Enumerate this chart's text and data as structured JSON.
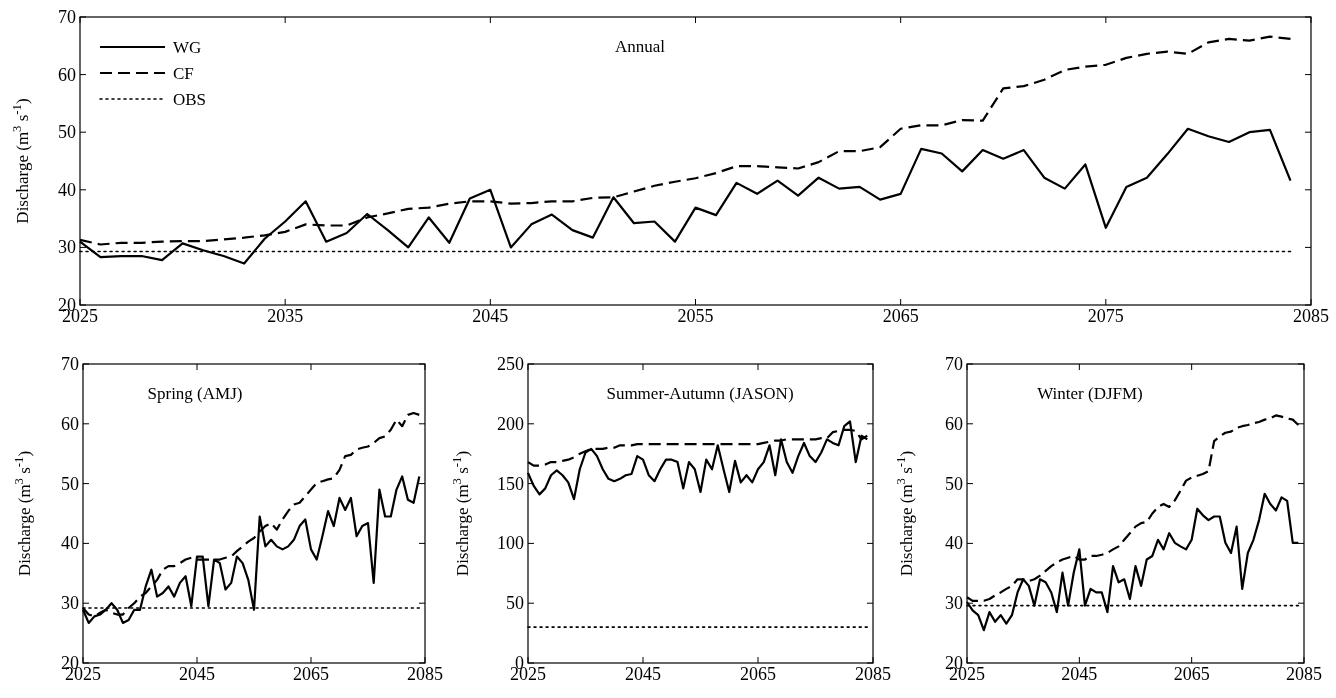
{
  "chart_data": [
    {
      "type": "line",
      "title": "Annual",
      "ylabel": "Discharge (m$^{3}$ s$^{-1}$)",
      "xlim": [
        2025,
        2085
      ],
      "xticks": [
        2025,
        2035,
        2045,
        2055,
        2065,
        2075,
        2085
      ],
      "ylim": [
        20,
        70
      ],
      "yticks": [
        20,
        30,
        40,
        50,
        60,
        70
      ],
      "legend": "top left",
      "grid": false,
      "x": [
        2025,
        2026,
        2027,
        2028,
        2029,
        2030,
        2031,
        2032,
        2033,
        2034,
        2035,
        2036,
        2037,
        2038,
        2039,
        2040,
        2041,
        2042,
        2043,
        2044,
        2045,
        2046,
        2047,
        2048,
        2049,
        2050,
        2051,
        2052,
        2053,
        2054,
        2055,
        2056,
        2057,
        2058,
        2059,
        2060,
        2061,
        2062,
        2063,
        2064,
        2065,
        2066,
        2067,
        2068,
        2069,
        2070,
        2071,
        2072,
        2073,
        2074,
        2075,
        2076,
        2077,
        2078,
        2079,
        2080,
        2081,
        2082,
        2083,
        2084
      ],
      "series": [
        {
          "name": "WG",
          "color": "#000000",
          "line_style": "solid",
          "values": [
            31,
            28.3,
            28.5,
            28.5,
            27.8,
            30.7,
            29.5,
            28.5,
            27.2,
            31.5,
            34.5,
            38,
            31,
            32.5,
            35.8,
            33,
            30,
            35.2,
            30.8,
            38.5,
            40,
            30,
            34,
            35.7,
            33,
            31.7,
            38.7,
            34.2,
            34.5,
            31,
            36.9,
            35.6,
            41.2,
            39.3,
            41.6,
            39,
            42.1,
            40.2,
            40.5,
            38.3,
            39.3,
            47.1,
            46.3,
            43.2,
            46.9,
            45.4,
            46.9,
            42.1,
            40.2,
            44.4,
            33.4,
            40.5,
            42.1,
            46.2,
            50.6,
            49.3,
            48.3,
            50,
            50.4,
            41.6
          ]
        },
        {
          "name": "CF",
          "color": "#000000",
          "line_style": "dashed",
          "values": [
            31.3,
            30.5,
            30.8,
            30.8,
            31,
            31.1,
            31.1,
            31.4,
            31.7,
            32.1,
            32.7,
            34,
            33.8,
            33.8,
            35.2,
            35.9,
            36.7,
            36.9,
            37.6,
            38,
            38,
            37.6,
            37.7,
            38,
            38,
            38.6,
            38.7,
            39.7,
            40.7,
            41.4,
            42,
            42.9,
            44.1,
            44.1,
            43.9,
            43.7,
            44.8,
            46.7,
            46.7,
            47.4,
            50.6,
            51.2,
            51.2,
            52.1,
            52,
            57.6,
            58,
            59.1,
            60.8,
            61.4,
            61.7,
            62.9,
            63.6,
            64,
            63.6,
            65.6,
            66.2,
            65.9,
            66.6,
            66.2
          ]
        },
        {
          "name": "OBS",
          "color": "#000000",
          "line_style": "dotted",
          "values": [
            29.3,
            29.3,
            29.3,
            29.3,
            29.3,
            29.3,
            29.3,
            29.3,
            29.3,
            29.3,
            29.3,
            29.3,
            29.3,
            29.3,
            29.3,
            29.3,
            29.3,
            29.3,
            29.3,
            29.3,
            29.3,
            29.3,
            29.3,
            29.3,
            29.3,
            29.3,
            29.3,
            29.3,
            29.3,
            29.3,
            29.3,
            29.3,
            29.3,
            29.3,
            29.3,
            29.3,
            29.3,
            29.3,
            29.3,
            29.3,
            29.3,
            29.3,
            29.3,
            29.3,
            29.3,
            29.3,
            29.3,
            29.3,
            29.3,
            29.3,
            29.3,
            29.3,
            29.3,
            29.3,
            29.3,
            29.3,
            29.3,
            29.3,
            29.3,
            29.3
          ]
        }
      ]
    },
    {
      "type": "line",
      "title": "Spring (AMJ)",
      "ylabel": "Discharge (m$^{3}$ s$^{-1}$)",
      "xlim": [
        2025,
        2085
      ],
      "xticks": [
        2025,
        2045,
        2065,
        2085
      ],
      "ylim": [
        20,
        70
      ],
      "yticks": [
        20,
        30,
        40,
        50,
        60,
        70
      ],
      "legend": false,
      "grid": false,
      "x": [
        2025,
        2026,
        2027,
        2028,
        2029,
        2030,
        2031,
        2032,
        2033,
        2034,
        2035,
        2036,
        2037,
        2038,
        2039,
        2040,
        2041,
        2042,
        2043,
        2044,
        2045,
        2046,
        2047,
        2048,
        2049,
        2050,
        2051,
        2052,
        2053,
        2054,
        2055,
        2056,
        2057,
        2058,
        2059,
        2060,
        2061,
        2062,
        2063,
        2064,
        2065,
        2066,
        2067,
        2068,
        2069,
        2070,
        2071,
        2072,
        2073,
        2074,
        2075,
        2076,
        2077,
        2078,
        2079,
        2080,
        2081,
        2082,
        2083,
        2084
      ],
      "series": [
        {
          "color": "#000000",
          "line_style": "solid",
          "values": [
            28.9,
            26.7,
            27.8,
            28.1,
            28.9,
            30,
            28.9,
            26.7,
            27.2,
            28.9,
            28.9,
            32.8,
            35.6,
            31.1,
            31.7,
            32.8,
            31.1,
            33.4,
            34.5,
            29.5,
            37.8,
            37.8,
            29.5,
            37.3,
            36.7,
            32.3,
            33.4,
            37.8,
            36.7,
            33.9,
            28.9,
            44.5,
            39.5,
            40.6,
            39.5,
            39,
            39.5,
            40.6,
            42.9,
            44,
            39,
            37.3,
            41.2,
            45.4,
            42.9,
            47.6,
            45.6,
            47.6,
            41.2,
            42.9,
            43.4,
            33.4,
            49,
            44.5,
            44.5,
            49,
            51.2,
            47.3,
            46.8,
            51.2
          ]
        },
        {
          "color": "#000000",
          "line_style": "dashed",
          "values": [
            29.2,
            28.1,
            27.8,
            28.4,
            28.9,
            28.4,
            28.1,
            28.1,
            29.2,
            30,
            31.1,
            31.7,
            32.8,
            33.9,
            35.6,
            36.2,
            36.2,
            36.7,
            37.3,
            37.6,
            37.3,
            37.3,
            37.3,
            37.3,
            37.3,
            37.6,
            37.8,
            38.7,
            39.5,
            40.3,
            40.9,
            42,
            42.9,
            43.4,
            42.3,
            44,
            45.4,
            46.5,
            46.8,
            47.9,
            49,
            50.1,
            50.4,
            50.7,
            50.9,
            52.3,
            54.6,
            54.8,
            55.7,
            56,
            56.2,
            56.8,
            57.6,
            57.9,
            59,
            60.7,
            59.6,
            61.5,
            61.8,
            61.5
          ]
        },
        {
          "color": "#000000",
          "line_style": "dotted",
          "values": [
            29.2,
            29.2,
            29.2,
            29.2,
            29.2,
            29.2,
            29.2,
            29.2,
            29.2,
            29.2,
            29.2,
            29.2,
            29.2,
            29.2,
            29.2,
            29.2,
            29.2,
            29.2,
            29.2,
            29.2,
            29.2,
            29.2,
            29.2,
            29.2,
            29.2,
            29.2,
            29.2,
            29.2,
            29.2,
            29.2,
            29.2,
            29.2,
            29.2,
            29.2,
            29.2,
            29.2,
            29.2,
            29.2,
            29.2,
            29.2,
            29.2,
            29.2,
            29.2,
            29.2,
            29.2,
            29.2,
            29.2,
            29.2,
            29.2,
            29.2,
            29.2,
            29.2,
            29.2,
            29.2,
            29.2,
            29.2,
            29.2,
            29.2,
            29.2,
            29.2
          ]
        }
      ]
    },
    {
      "type": "line",
      "title": "Summer-Autumn (JASON)",
      "ylabel": "Discharge (m$^{3}$ s$^{-1}$)",
      "xlim": [
        2025,
        2085
      ],
      "xticks": [
        2025,
        2045,
        2065,
        2085
      ],
      "ylim": [
        0,
        250
      ],
      "yticks": [
        0,
        50,
        100,
        150,
        200,
        250
      ],
      "legend": false,
      "grid": false,
      "x": [
        2025,
        2026,
        2027,
        2028,
        2029,
        2030,
        2031,
        2032,
        2033,
        2034,
        2035,
        2036,
        2037,
        2038,
        2039,
        2040,
        2041,
        2042,
        2043,
        2044,
        2045,
        2046,
        2047,
        2048,
        2049,
        2050,
        2051,
        2052,
        2053,
        2054,
        2055,
        2056,
        2057,
        2058,
        2059,
        2060,
        2061,
        2062,
        2063,
        2064,
        2065,
        2066,
        2067,
        2068,
        2069,
        2070,
        2071,
        2072,
        2073,
        2074,
        2075,
        2076,
        2077,
        2078,
        2079,
        2080,
        2081,
        2082,
        2083,
        2084
      ],
      "series": [
        {
          "color": "#000000",
          "line_style": "solid",
          "values": [
            159,
            148,
            141,
            146,
            157,
            161,
            157,
            151,
            137,
            162,
            176,
            179,
            173,
            162,
            154,
            152,
            154,
            157,
            158,
            173,
            170,
            157,
            152,
            162,
            170,
            170,
            168,
            146,
            168,
            162,
            143,
            170,
            162,
            182,
            162,
            143,
            169,
            151,
            157,
            151,
            162,
            168,
            182,
            157,
            187,
            168,
            159,
            173,
            184,
            173,
            168,
            176,
            187,
            184,
            182,
            198,
            202,
            168,
            190,
            187
          ]
        },
        {
          "color": "#000000",
          "line_style": "dashed",
          "values": [
            168,
            165,
            165,
            166,
            168,
            168,
            169,
            170,
            172,
            175,
            177,
            179,
            179,
            179,
            180,
            180,
            182,
            182,
            182,
            183,
            183,
            183,
            183,
            183,
            183,
            183,
            183,
            183,
            183,
            183,
            183,
            183,
            183,
            183,
            183,
            183,
            183,
            183,
            183,
            183,
            183,
            184,
            185,
            186,
            186,
            187,
            187,
            187,
            187,
            187,
            187,
            188,
            188,
            193,
            194,
            195,
            195,
            194,
            187,
            190
          ]
        },
        {
          "color": "#000000",
          "line_style": "dotted",
          "values": [
            30,
            30,
            30,
            30,
            30,
            30,
            30,
            30,
            30,
            30,
            30,
            30,
            30,
            30,
            30,
            30,
            30,
            30,
            30,
            30,
            30,
            30,
            30,
            30,
            30,
            30,
            30,
            30,
            30,
            30,
            30,
            30,
            30,
            30,
            30,
            30,
            30,
            30,
            30,
            30,
            30,
            30,
            30,
            30,
            30,
            30,
            30,
            30,
            30,
            30,
            30,
            30,
            30,
            30,
            30,
            30,
            30,
            30,
            30,
            30
          ]
        }
      ]
    },
    {
      "type": "line",
      "title": "Winter (DJFM)",
      "ylabel": "Discharge (m$^{3}$ s$^{-1}$)",
      "xlim": [
        2025,
        2085
      ],
      "xticks": [
        2025,
        2045,
        2065,
        2085
      ],
      "ylim": [
        20,
        70
      ],
      "yticks": [
        20,
        30,
        40,
        50,
        60,
        70
      ],
      "legend": false,
      "grid": false,
      "x": [
        2025,
        2026,
        2027,
        2028,
        2029,
        2030,
        2031,
        2032,
        2033,
        2034,
        2035,
        2036,
        2037,
        2038,
        2039,
        2040,
        2041,
        2042,
        2043,
        2044,
        2045,
        2046,
        2047,
        2048,
        2049,
        2050,
        2051,
        2052,
        2053,
        2054,
        2055,
        2056,
        2057,
        2058,
        2059,
        2060,
        2061,
        2062,
        2063,
        2064,
        2065,
        2066,
        2067,
        2068,
        2069,
        2070,
        2071,
        2072,
        2073,
        2074,
        2075,
        2076,
        2077,
        2078,
        2079,
        2080,
        2081,
        2082,
        2083,
        2084
      ],
      "series": [
        {
          "color": "#000000",
          "line_style": "solid",
          "values": [
            30.2,
            28.8,
            28,
            25.5,
            28.5,
            26.9,
            28,
            26.6,
            28,
            31.8,
            34,
            32.9,
            29.6,
            34,
            33.5,
            31.8,
            28.5,
            35.1,
            29.6,
            35.1,
            39,
            29.6,
            32.4,
            31.8,
            31.8,
            28.5,
            36.2,
            33.5,
            34,
            30.7,
            36.2,
            32.9,
            37.3,
            37.9,
            40.6,
            39,
            41.7,
            40.1,
            39.5,
            39,
            40.6,
            45.8,
            44.7,
            43.9,
            44.5,
            44.5,
            40.1,
            38.4,
            42.8,
            32.4,
            38.4,
            40.6,
            43.9,
            48.3,
            46.6,
            45.5,
            47.7,
            47.1,
            40.1,
            40.1
          ]
        },
        {
          "color": "#000000",
          "line_style": "dashed",
          "values": [
            31,
            30.4,
            30.4,
            30.4,
            30.7,
            31.3,
            31.8,
            32.4,
            32.9,
            34,
            34,
            33.7,
            34,
            34.6,
            35.4,
            36.2,
            36.8,
            37.3,
            37.6,
            37.9,
            37.3,
            37.3,
            37.9,
            37.9,
            38.1,
            38.4,
            39,
            39.5,
            40.6,
            41.7,
            42.8,
            43.4,
            43.6,
            45,
            46.1,
            46.6,
            46.1,
            47.2,
            48.8,
            50.5,
            51,
            51.3,
            51.6,
            52.1,
            57.1,
            57.9,
            58.5,
            58.7,
            59.3,
            59.6,
            59.8,
            60.1,
            60.3,
            60.7,
            60.9,
            61.4,
            61.2,
            60.9,
            60.7,
            59.8
          ]
        },
        {
          "color": "#000000",
          "line_style": "dotted",
          "values": [
            29.6,
            29.6,
            29.6,
            29.6,
            29.6,
            29.6,
            29.6,
            29.6,
            29.6,
            29.6,
            29.6,
            29.6,
            29.6,
            29.6,
            29.6,
            29.6,
            29.6,
            29.6,
            29.6,
            29.6,
            29.6,
            29.6,
            29.6,
            29.6,
            29.6,
            29.6,
            29.6,
            29.6,
            29.6,
            29.6,
            29.6,
            29.6,
            29.6,
            29.6,
            29.6,
            29.6,
            29.6,
            29.6,
            29.6,
            29.6,
            29.6,
            29.6,
            29.6,
            29.6,
            29.6,
            29.6,
            29.6,
            29.6,
            29.6,
            29.6,
            29.6,
            29.6,
            29.6,
            29.6,
            29.6,
            29.6,
            29.6,
            29.6,
            29.6,
            29.6
          ]
        }
      ]
    }
  ]
}
